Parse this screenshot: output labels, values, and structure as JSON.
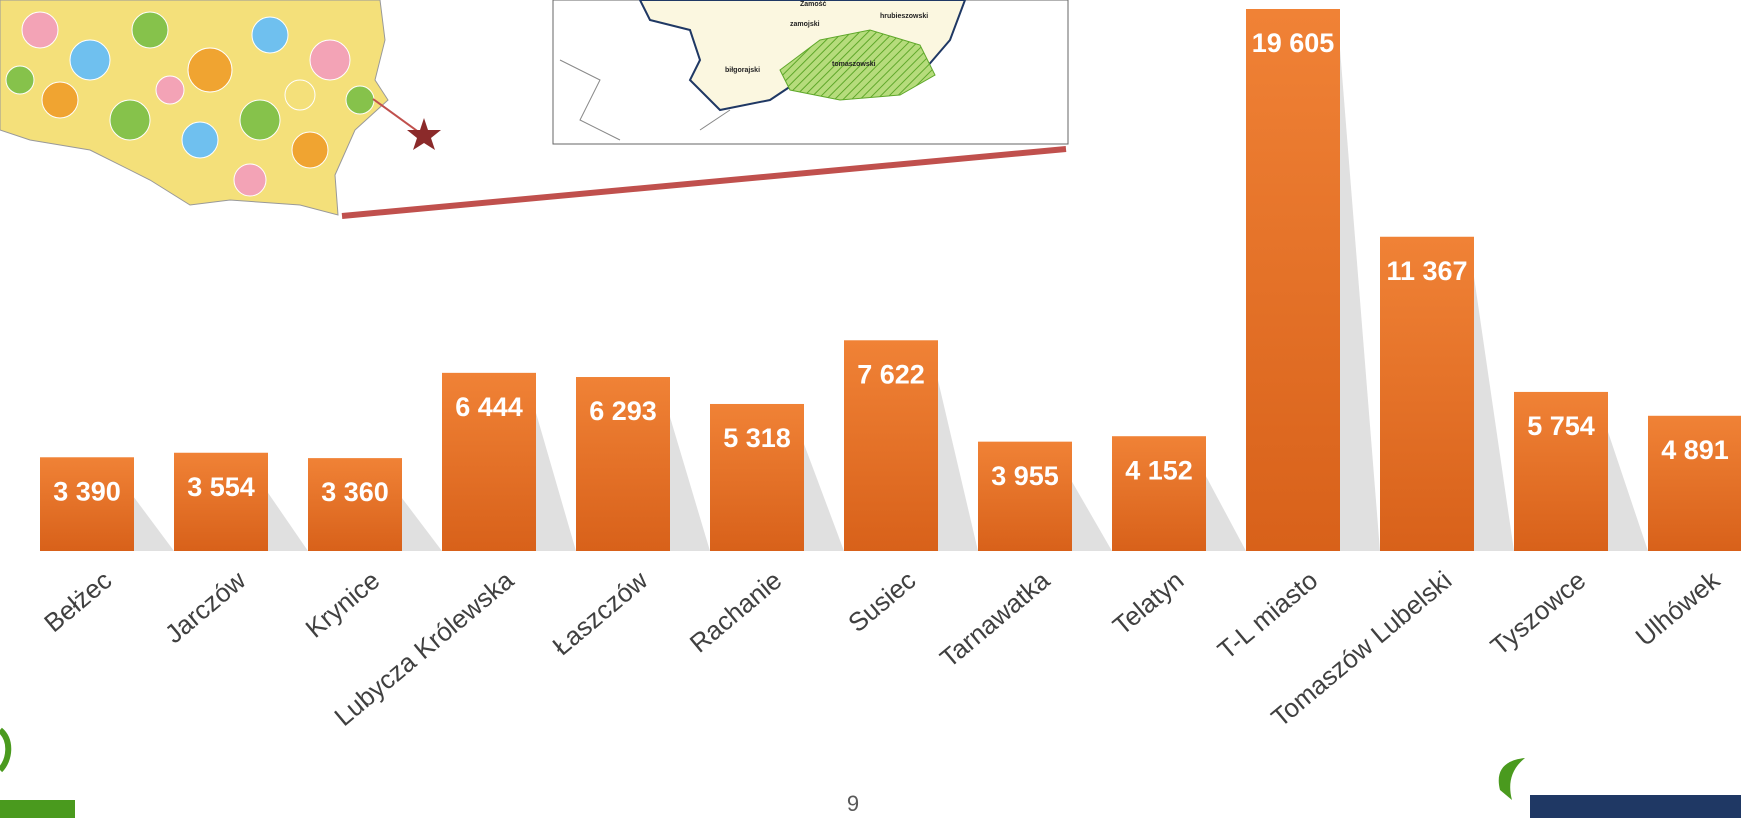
{
  "chart_data": {
    "type": "bar",
    "categories": [
      "Bełżec",
      "Jarczów",
      "Krynice",
      "Lubycza Królewska",
      "Łaszczów",
      "Rachanie",
      "Susiec",
      "Tarnawatka",
      "Telatyn",
      "T-L miasto",
      "Tomaszów Lubelski",
      "Tyszowce",
      "Ulhówek"
    ],
    "values": [
      3390,
      3554,
      3360,
      6444,
      6293,
      5318,
      7622,
      3955,
      4152,
      19605,
      11367,
      5754,
      4891
    ],
    "value_labels": [
      "3 390",
      "3 554",
      "3 360",
      "6 444",
      "6 293",
      "5 318",
      "7 622",
      "3 955",
      "4 152",
      "19 605",
      "11 367",
      "5 754",
      "4 891"
    ],
    "color": "#e8742a"
  },
  "map": {
    "labels": [
      "Zamość",
      "zamojski",
      "hrubieszowski",
      "biłgorajski",
      "tomaszowski"
    ]
  },
  "page_number": "9"
}
